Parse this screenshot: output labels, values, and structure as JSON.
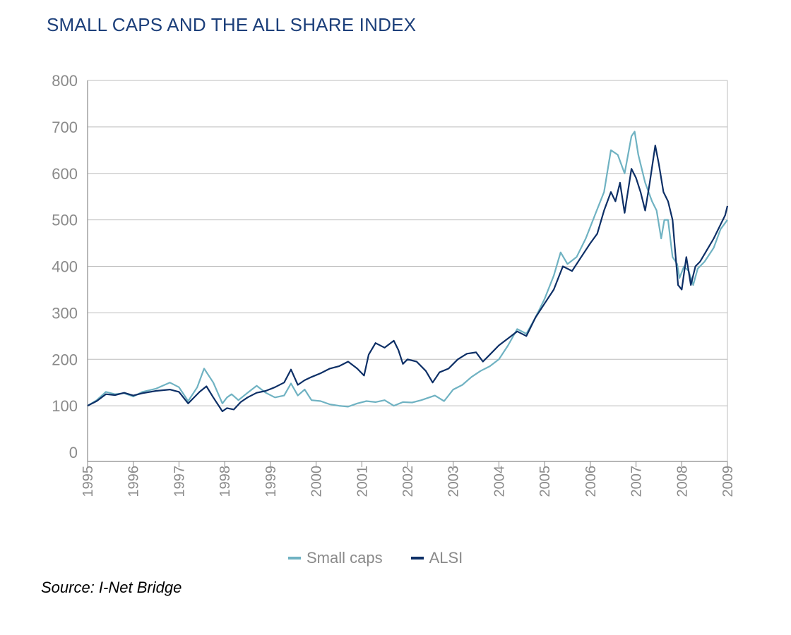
{
  "title": "SMALL CAPS AND THE ALL SHARE INDEX",
  "source": "Source: I-Net Bridge",
  "colors": {
    "small_caps": "#6fb2c2",
    "alsi": "#0d2f66",
    "title": "#1c3f7a",
    "grid": "#bdbdbd",
    "axis": "#8a8a8a"
  },
  "chart_data": {
    "type": "line",
    "title": "SMALL CAPS AND THE ALL SHARE INDEX",
    "xlabel": "",
    "ylabel": "",
    "xlim": [
      1995,
      2009
    ],
    "ylim": [
      0,
      800
    ],
    "yticks": [
      "0",
      "100",
      "200",
      "300",
      "400",
      "500",
      "600",
      "700",
      "800"
    ],
    "xticks": [
      "1995",
      "1996",
      "1997",
      "1998",
      "1999",
      "2000",
      "2001",
      "2002",
      "2003",
      "2004",
      "2005",
      "2006",
      "2007",
      "2008",
      "2009"
    ],
    "grid": "horizontal",
    "legend_position": "bottom",
    "series": [
      {
        "name": "Small caps",
        "x": [
          1995,
          1995.2,
          1995.4,
          1995.6,
          1995.8,
          1996,
          1996.2,
          1996.5,
          1996.8,
          1997,
          1997.2,
          1997.4,
          1997.55,
          1997.75,
          1997.95,
          1998.05,
          1998.15,
          1998.3,
          1998.5,
          1998.7,
          1998.9,
          1999.1,
          1999.3,
          1999.45,
          1999.6,
          1999.75,
          1999.9,
          2000.1,
          2000.3,
          2000.5,
          2000.7,
          2000.9,
          2001.1,
          2001.3,
          2001.5,
          2001.7,
          2001.9,
          2002.1,
          2002.3,
          2002.6,
          2002.8,
          2003,
          2003.2,
          2003.4,
          2003.6,
          2003.8,
          2004,
          2004.2,
          2004.4,
          2004.6,
          2004.8,
          2005,
          2005.2,
          2005.35,
          2005.5,
          2005.7,
          2005.9,
          2006.1,
          2006.3,
          2006.45,
          2006.6,
          2006.75,
          2006.9,
          2006.97,
          2007.05,
          2007.2,
          2007.35,
          2007.45,
          2007.55,
          2007.62,
          2007.7,
          2007.8,
          2007.9,
          2007.95,
          2008.05,
          2008.15,
          2008.25,
          2008.35,
          2008.5,
          2008.7,
          2008.85,
          2009
        ],
        "values": [
          100,
          112,
          130,
          125,
          127,
          120,
          130,
          137,
          150,
          140,
          110,
          140,
          180,
          150,
          105,
          118,
          125,
          112,
          128,
          143,
          128,
          118,
          122,
          148,
          122,
          135,
          112,
          110,
          103,
          100,
          98,
          105,
          110,
          108,
          112,
          100,
          108,
          107,
          112,
          122,
          110,
          135,
          145,
          162,
          175,
          185,
          200,
          230,
          265,
          255,
          290,
          330,
          380,
          430,
          405,
          420,
          460,
          510,
          560,
          650,
          640,
          600,
          680,
          690,
          640,
          580,
          540,
          520,
          460,
          500,
          500,
          420,
          405,
          375,
          400,
          390,
          360,
          395,
          410,
          440,
          480,
          500
        ]
      },
      {
        "name": "ALSI",
        "x": [
          1995,
          1995.2,
          1995.4,
          1995.6,
          1995.8,
          1996,
          1996.2,
          1996.5,
          1996.8,
          1997,
          1997.2,
          1997.35,
          1997.45,
          1997.6,
          1997.75,
          1997.95,
          1998.05,
          1998.2,
          1998.35,
          1998.5,
          1998.7,
          1998.9,
          1999.1,
          1999.3,
          1999.45,
          1999.6,
          1999.75,
          1999.9,
          2000.1,
          2000.3,
          2000.5,
          2000.7,
          2000.9,
          2001.05,
          2001.15,
          2001.3,
          2001.5,
          2001.7,
          2001.8,
          2001.9,
          2002,
          2002.2,
          2002.4,
          2002.55,
          2002.7,
          2002.9,
          2003.1,
          2003.3,
          2003.5,
          2003.65,
          2003.8,
          2004,
          2004.2,
          2004.4,
          2004.6,
          2004.8,
          2005,
          2005.2,
          2005.4,
          2005.6,
          2005.8,
          2006,
          2006.15,
          2006.3,
          2006.45,
          2006.55,
          2006.65,
          2006.75,
          2006.9,
          2007,
          2007.1,
          2007.2,
          2007.3,
          2007.42,
          2007.5,
          2007.6,
          2007.7,
          2007.8,
          2007.85,
          2007.92,
          2008,
          2008.1,
          2008.2,
          2008.3,
          2008.4,
          2008.55,
          2008.7,
          2008.85,
          2008.95,
          2009
        ],
        "values": [
          100,
          110,
          125,
          123,
          128,
          122,
          127,
          132,
          135,
          130,
          105,
          120,
          130,
          142,
          118,
          88,
          95,
          92,
          108,
          118,
          128,
          132,
          140,
          150,
          178,
          145,
          155,
          162,
          170,
          180,
          185,
          195,
          180,
          165,
          210,
          235,
          225,
          240,
          220,
          190,
          200,
          195,
          175,
          150,
          172,
          180,
          200,
          212,
          215,
          195,
          210,
          230,
          245,
          260,
          250,
          290,
          320,
          350,
          400,
          390,
          420,
          450,
          470,
          520,
          560,
          540,
          580,
          515,
          610,
          590,
          560,
          520,
          580,
          660,
          620,
          560,
          540,
          500,
          440,
          360,
          350,
          420,
          360,
          400,
          410,
          435,
          460,
          490,
          510,
          530
        ]
      }
    ]
  }
}
